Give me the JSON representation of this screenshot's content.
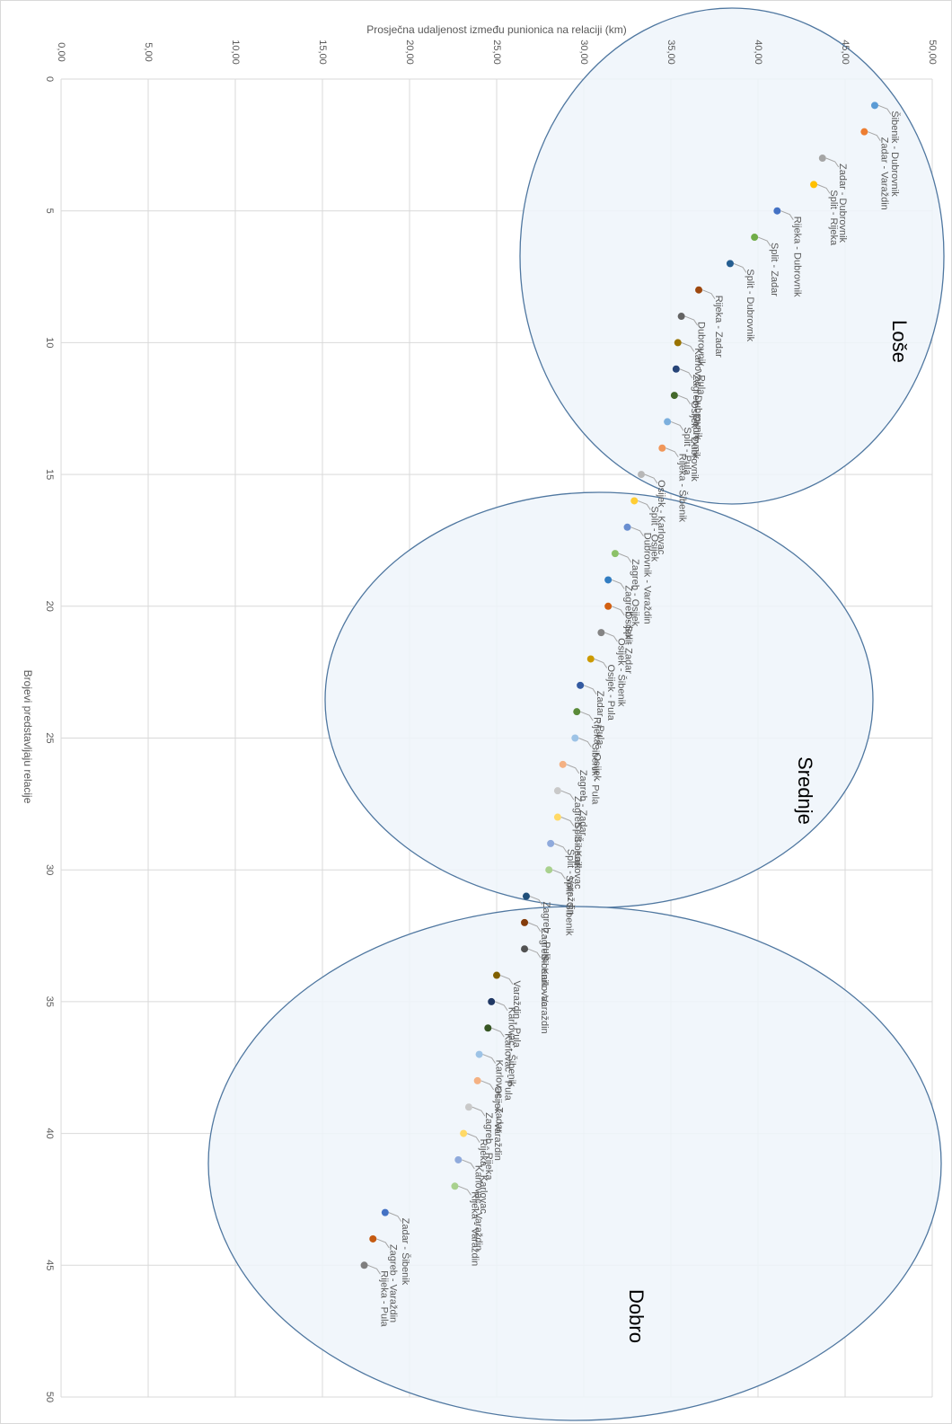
{
  "chart_data": {
    "type": "scatter",
    "xlabel": "Prosječna udaljenost između punionica na relaciji (km)",
    "ylabel": "Brojevi predstavljaju relacije",
    "xlim": [
      0,
      50
    ],
    "xticks": [
      {
        "value": 0,
        "label": "0,00"
      },
      {
        "value": 5,
        "label": "5,00"
      },
      {
        "value": 10,
        "label": "10,00"
      },
      {
        "value": 15,
        "label": "15,00"
      },
      {
        "value": 20,
        "label": "20,00"
      },
      {
        "value": 25,
        "label": "25,00"
      },
      {
        "value": 30,
        "label": "30,00"
      },
      {
        "value": 35,
        "label": "35,00"
      },
      {
        "value": 40,
        "label": "40,00"
      },
      {
        "value": 45,
        "label": "45,00"
      },
      {
        "value": 50,
        "label": "50,00"
      }
    ],
    "ylim": [
      0,
      50
    ],
    "yticks": [
      0,
      5,
      10,
      15,
      20,
      25,
      30,
      35,
      40,
      45,
      50
    ],
    "grid": true,
    "annotations": [
      "Loše",
      "Srednje",
      "Dobro"
    ],
    "y": [
      1,
      2,
      3,
      4,
      5,
      6,
      7,
      8,
      9,
      10,
      11,
      12,
      13,
      14,
      15,
      16,
      17,
      18,
      19,
      20,
      21,
      22,
      23,
      24,
      25,
      26,
      27,
      28,
      29,
      30,
      31,
      32,
      33,
      34,
      35,
      36,
      37,
      38,
      39,
      40,
      41,
      42,
      43,
      44,
      45
    ],
    "x": [
      46.7,
      46.1,
      43.7,
      43.2,
      41.1,
      39.8,
      38.4,
      36.6,
      35.6,
      35.4,
      35.3,
      35.2,
      34.8,
      34.5,
      33.3,
      32.9,
      32.5,
      31.8,
      31.4,
      31.4,
      31.0,
      30.4,
      29.8,
      29.6,
      29.5,
      28.8,
      28.5,
      28.5,
      28.1,
      28.0,
      26.7,
      26.6,
      26.6,
      25.0,
      24.7,
      24.5,
      24.0,
      23.9,
      23.4,
      23.1,
      22.8,
      22.6,
      18.6,
      17.9,
      17.4
    ],
    "point_labels": [
      "Šibenik - Dubrovnik",
      "Zadar - Varaždin",
      "Zadar - Dubrovnik",
      "Split - Rijeka",
      "Rijeka - Dubrovnik",
      "Split - Zadar",
      "Split - Dubrovnik",
      "Rijeka - Zadar",
      "Dubrovnik - Pula",
      "Karlovac - Dubrovnik",
      "Zagreb - Dubrovnik",
      "Osijek - Dubrovnik",
      "Split - Pula",
      "Rijeka - Šibenik",
      "Osijek - Karlovac",
      "Split - Osijek",
      "Dubrovnik - Varaždin",
      "Zagreb - Osijek",
      "Zagreb - Split",
      "Osijek - Zadar",
      "Osijek - Šibenik",
      "Osijek - Pula",
      "Zadar - Pula",
      "Rijeka - Osijek",
      "Šibenik - Pula",
      "Zagreb - Zadar",
      "Zagreb - Šibenik",
      "Split - Karlovac",
      "Split - Varaždin",
      "Split - Šibenik",
      "Zagreb - Pula",
      "Zagreb - Karlovac",
      "Šibenik - Varaždin",
      "Varaždin - Pula",
      "Karlovac - Šibenik",
      "Karlovac - Pula",
      "Karlovac - Zadar",
      "Osijek - Varaždin",
      "Zagreb - Rijeka",
      "Rijeka - Karlovac",
      "Karlovac - Varaždin",
      "Rijeka - Varaždin",
      "Zadar - Šibenik",
      "Zagreb - Varaždin",
      "Rijeka - Pula"
    ],
    "colors": [
      "#5b9bd5",
      "#ed7d31",
      "#a5a5a5",
      "#ffc000",
      "#4472c4",
      "#70ad47",
      "#255e91",
      "#9e480e",
      "#636363",
      "#997300",
      "#264478",
      "#43682b",
      "#7cafdd",
      "#f1975a",
      "#b7b7b7",
      "#ffcd33",
      "#698ed0",
      "#8cc168",
      "#327dc2",
      "#d26012",
      "#848484",
      "#cc9a00",
      "#335aa1",
      "#5a8a39",
      "#9dc3e6",
      "#f4b183",
      "#c9c9c9",
      "#ffd966",
      "#8faadc",
      "#a9d18e",
      "#1f4e79",
      "#843c0c",
      "#525252",
      "#806000",
      "#203864",
      "#375623",
      "#9dc3e6",
      "#f4b183",
      "#c9c9c9",
      "#ffd966",
      "#8faadc",
      "#a9d18e",
      "#4472c4",
      "#c55a11",
      "#7f7f7f"
    ]
  }
}
